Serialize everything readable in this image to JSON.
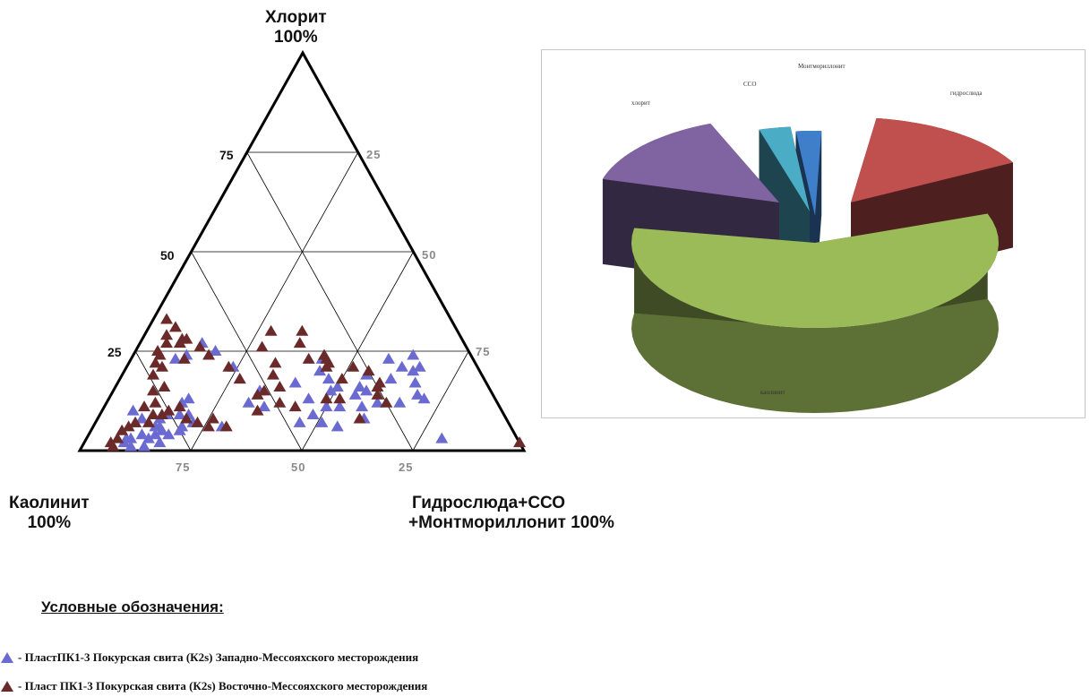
{
  "ternary": {
    "apex_top": {
      "line1": "Хлорит",
      "line2": "100%"
    },
    "apex_left": {
      "line1": "Каолинит",
      "line2": "100%"
    },
    "apex_right": {
      "line1": "Гидрослюда+ССО",
      "line2": "+Монтмориллонит 100%"
    },
    "left_ticks": [
      "75",
      "50",
      "25"
    ],
    "right_ticks": [
      "25",
      "50",
      "75"
    ],
    "bottom_ticks": [
      "75",
      "50",
      "25"
    ]
  },
  "legend": {
    "title": "Условные обозначения:",
    "items": [
      {
        "text": "- ПластПК1-3 Покурская свита (К2s) Западно-Мессояхского месторождения",
        "color": "#6a6ad0"
      },
      {
        "text": "- Пласт ПК1-3 Покурская свита (К2s) Восточно-Мессояхского месторождения",
        "color": "#6b2a2a"
      }
    ]
  },
  "chart_data": [
    {
      "type": "scatter",
      "subtype": "ternary",
      "axes": [
        "Хлорит",
        "Каолинит",
        "Гидрослюда+ССО+Монтмориллонит"
      ],
      "grid": true,
      "series": [
        {
          "name": "ПластПК1-3 Покурская свита (К2s) Западно-Мессояхского месторождения",
          "color": "#6a6ad0",
          "points": [
            [
              24,
              13,
              63
            ],
            [
              21,
              13,
              66
            ],
            [
              20,
              15,
              65
            ],
            [
              17,
              16,
              67
            ],
            [
              13,
              16,
              71
            ],
            [
              23,
              19,
              58
            ],
            [
              21,
              17,
              62
            ],
            [
              18,
              21,
              61
            ],
            [
              14,
              17,
              69
            ],
            [
              12,
              22,
              66
            ],
            [
              3,
              17,
              80
            ],
            [
              19,
              26,
              55
            ],
            [
              15,
              28,
              57
            ],
            [
              16,
              29,
              55
            ],
            [
              12,
              27,
              61
            ],
            [
              8,
              32,
              60
            ],
            [
              11,
              31,
              58
            ],
            [
              14,
              31,
              55
            ],
            [
              16,
              34,
              50
            ],
            [
              18,
              35,
              47
            ],
            [
              15,
              36,
              49
            ],
            [
              23,
              34,
              43
            ],
            [
              20,
              36,
              44
            ],
            [
              13,
              42,
              45
            ],
            [
              9,
              43,
              48
            ],
            [
              11,
              36,
              53
            ],
            [
              17,
              43,
              40
            ],
            [
              6,
              39,
              55
            ],
            [
              11,
              39,
              50
            ],
            [
              7,
              42,
              51
            ],
            [
              7,
              47,
              46
            ],
            [
              11,
              53,
              36
            ],
            [
              12,
              56,
              32
            ],
            [
              15,
              52,
              33
            ],
            [
              18,
              55,
              27
            ],
            [
              21,
              55,
              24
            ],
            [
              25,
              57,
              18
            ],
            [
              27,
              59,
              14
            ],
            [
              24,
              64,
              12
            ],
            [
              23,
              67,
              10
            ],
            [
              6,
              65,
              29
            ],
            [
              7,
              71,
              22
            ],
            [
              9,
              76,
              15
            ],
            [
              6,
              80,
              14
            ],
            [
              10,
              83,
              7
            ],
            [
              2,
              89,
              9
            ],
            [
              3,
              87,
              10
            ],
            [
              3,
              88,
              9
            ],
            [
              1,
              88,
              11
            ],
            [
              1,
              85,
              14
            ],
            [
              4,
              84,
              12
            ],
            [
              4,
              81,
              15
            ],
            [
              5,
              79,
              16
            ],
            [
              4,
              78,
              18
            ],
            [
              6,
              79,
              15
            ],
            [
              8,
              78,
              14
            ],
            [
              8,
              82,
              10
            ],
            [
              7,
              84,
              9
            ],
            [
              3,
              83,
              14
            ],
            [
              2,
              81,
              17
            ],
            [
              5,
              75,
              20
            ],
            [
              6,
              74,
              20
            ],
            [
              9,
              73,
              18
            ],
            [
              9,
              71,
              20
            ],
            [
              12,
              71,
              17
            ],
            [
              13,
              69,
              18
            ]
          ]
        },
        {
          "name": "Пласт ПК1-3 Покурская свита (К2s) Восточно-Мессояхского месторождения",
          "color": "#6b2a2a",
          "points": [
            [
              30,
              35,
              35
            ],
            [
              27,
              37,
              36
            ],
            [
              24,
              33,
              43
            ],
            [
              22,
              33,
              45
            ],
            [
              21,
              28,
              51
            ],
            [
              20,
              25,
              55
            ],
            [
              17,
              24,
              59
            ],
            [
              16,
              25,
              59
            ],
            [
              14,
              26,
              60
            ],
            [
              12,
              25,
              63
            ],
            [
              23,
              37,
              40
            ],
            [
              23,
              33,
              44
            ],
            [
              30,
              42,
              28
            ],
            [
              26,
              46,
              28
            ],
            [
              22,
              45,
              33
            ],
            [
              19,
              47,
              34
            ],
            [
              16,
              47,
              37
            ],
            [
              15,
              51,
              34
            ],
            [
              18,
              55,
              27
            ],
            [
              21,
              56,
              23
            ],
            [
              24,
              59,
              17
            ],
            [
              26,
              60,
              14
            ],
            [
              28,
              63,
              9
            ],
            [
              23,
              65,
              12
            ],
            [
              24,
              70,
              6
            ],
            [
              21,
              71,
              8
            ],
            [
              19,
              74,
              7
            ],
            [
              16,
              73,
              11
            ],
            [
              15,
              76,
              9
            ],
            [
              12,
              77,
              11
            ],
            [
              11,
              80,
              9
            ],
            [
              9,
              79,
              12
            ],
            [
              7,
              81,
              12
            ],
            [
              7,
              84,
              9
            ],
            [
              6,
              86,
              8
            ],
            [
              5,
              88,
              7
            ],
            [
              3,
              90,
              7
            ],
            [
              2,
              92,
              6
            ],
            [
              1,
              92,
              7
            ],
            [
              9,
              77,
              14
            ],
            [
              10,
              75,
              15
            ],
            [
              11,
              72,
              17
            ],
            [
              8,
              72,
              20
            ],
            [
              7,
              70,
              23
            ],
            [
              6,
              68,
              26
            ],
            [
              8,
              66,
              26
            ],
            [
              6,
              64,
              30
            ],
            [
              28,
              62,
              10
            ],
            [
              27,
              64,
              9
            ],
            [
              29,
              66,
              5
            ],
            [
              31,
              63,
              6
            ],
            [
              33,
              64,
              3
            ],
            [
              27,
              67,
              6
            ],
            [
              25,
              70,
              5
            ],
            [
              22,
              72,
              6
            ],
            [
              2,
              0,
              98
            ],
            [
              10,
              55,
              35
            ],
            [
              14,
              53,
              33
            ],
            [
              12,
              49,
              39
            ],
            [
              11,
              46,
              43
            ],
            [
              13,
              38,
              49
            ],
            [
              8,
              33,
              59
            ],
            [
              21,
              34,
              45
            ],
            [
              18,
              32,
              50
            ],
            [
              13,
              35,
              52
            ]
          ]
        }
      ]
    },
    {
      "type": "pie",
      "title": "",
      "slices": [
        {
          "label": "Монтмориллонит",
          "color": "#3f7fc9"
        },
        {
          "label": "гидрослюда",
          "color": "#c0504d"
        },
        {
          "label": "каолинит",
          "color": "#9bbb59"
        },
        {
          "label": "хлорит",
          "color": "#8064a2"
        },
        {
          "label": "ССО",
          "color": "#4bacc6"
        }
      ]
    }
  ]
}
